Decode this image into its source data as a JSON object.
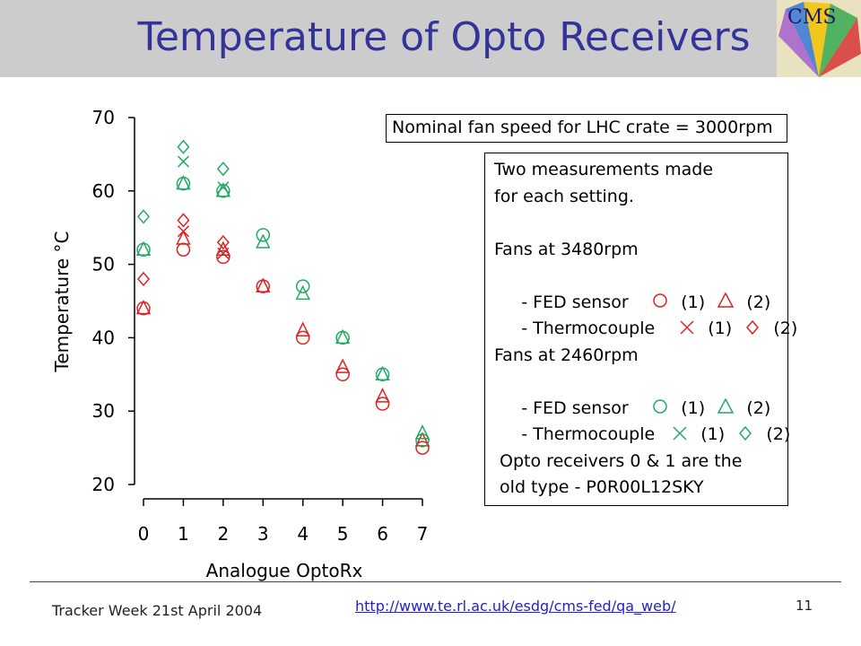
{
  "slide": {
    "title": "Temperature of Opto Receivers",
    "logo_text": "CMS",
    "footer_left": "Tracker Week 21st April 2004",
    "footer_url": "http://www.te.rl.ac.uk/esdg/cms-fed/qa_web/",
    "page_number": "11"
  },
  "annotations": {
    "nominal": "Nominal fan speed for LHC crate = 3000rpm",
    "line1": "Two measurements made",
    "line2": "for each setting.",
    "fans_high": "Fans at 3480rpm",
    "fans_low": "Fans at 2460rpm",
    "fed_sensor": " - FED sensor",
    "thermocouple": " - Thermocouple",
    "m1": "(1)",
    "m2": "(2)",
    "note1": " Opto receivers 0 & 1 are the",
    "note2": " old type - P0R00L12SKY"
  },
  "colors": {
    "high_fan": "#dd2222",
    "low_fan": "#22aa66",
    "title": "#333399"
  },
  "chart_data": {
    "type": "scatter",
    "xlabel": "Analogue OptoRx",
    "ylabel": "Temperature °C",
    "xlim": [
      0,
      7
    ],
    "ylim": [
      20,
      70
    ],
    "xticks": [
      "0",
      "1",
      "2",
      "3",
      "4",
      "5",
      "6",
      "7"
    ],
    "yticks": [
      "20",
      "30",
      "40",
      "50",
      "60",
      "70"
    ],
    "series": [
      {
        "fan": "3480rpm",
        "sensor": "FED sensor",
        "measurement": 1,
        "marker": "circle",
        "color": "#dd2222",
        "x": [
          0,
          1,
          2,
          3,
          4,
          5,
          6,
          7
        ],
        "y": [
          44,
          52,
          51,
          47,
          40,
          35,
          31,
          25
        ]
      },
      {
        "fan": "3480rpm",
        "sensor": "FED sensor",
        "measurement": 2,
        "marker": "triangle",
        "color": "#dd2222",
        "x": [
          0,
          1,
          2,
          3,
          4,
          5,
          6,
          7
        ],
        "y": [
          44,
          53.5,
          52,
          47,
          41,
          36,
          32,
          26
        ]
      },
      {
        "fan": "3480rpm",
        "sensor": "Thermocouple",
        "measurement": 1,
        "marker": "x",
        "color": "#dd2222",
        "x": [
          1,
          2
        ],
        "y": [
          54.5,
          51.5
        ]
      },
      {
        "fan": "3480rpm",
        "sensor": "Thermocouple",
        "measurement": 2,
        "marker": "diamond",
        "color": "#dd2222",
        "x": [
          0,
          1,
          2
        ],
        "y": [
          48,
          56,
          53
        ]
      },
      {
        "fan": "2460rpm",
        "sensor": "FED sensor",
        "measurement": 1,
        "marker": "circle",
        "color": "#22aa66",
        "x": [
          0,
          1,
          2,
          3,
          4,
          5,
          6,
          7
        ],
        "y": [
          52,
          61,
          60,
          54,
          47,
          40,
          35,
          26
        ]
      },
      {
        "fan": "2460rpm",
        "sensor": "FED sensor",
        "measurement": 2,
        "marker": "triangle",
        "color": "#22aa66",
        "x": [
          0,
          1,
          2,
          3,
          4,
          5,
          6,
          7
        ],
        "y": [
          52,
          61,
          60,
          53,
          46,
          40,
          35,
          27
        ]
      },
      {
        "fan": "2460rpm",
        "sensor": "Thermocouple",
        "measurement": 1,
        "marker": "x",
        "color": "#22aa66",
        "x": [
          1,
          2
        ],
        "y": [
          64,
          60.5
        ]
      },
      {
        "fan": "2460rpm",
        "sensor": "Thermocouple",
        "measurement": 2,
        "marker": "diamond",
        "color": "#22aa66",
        "x": [
          0,
          1,
          2
        ],
        "y": [
          56.5,
          66,
          63
        ]
      }
    ]
  }
}
